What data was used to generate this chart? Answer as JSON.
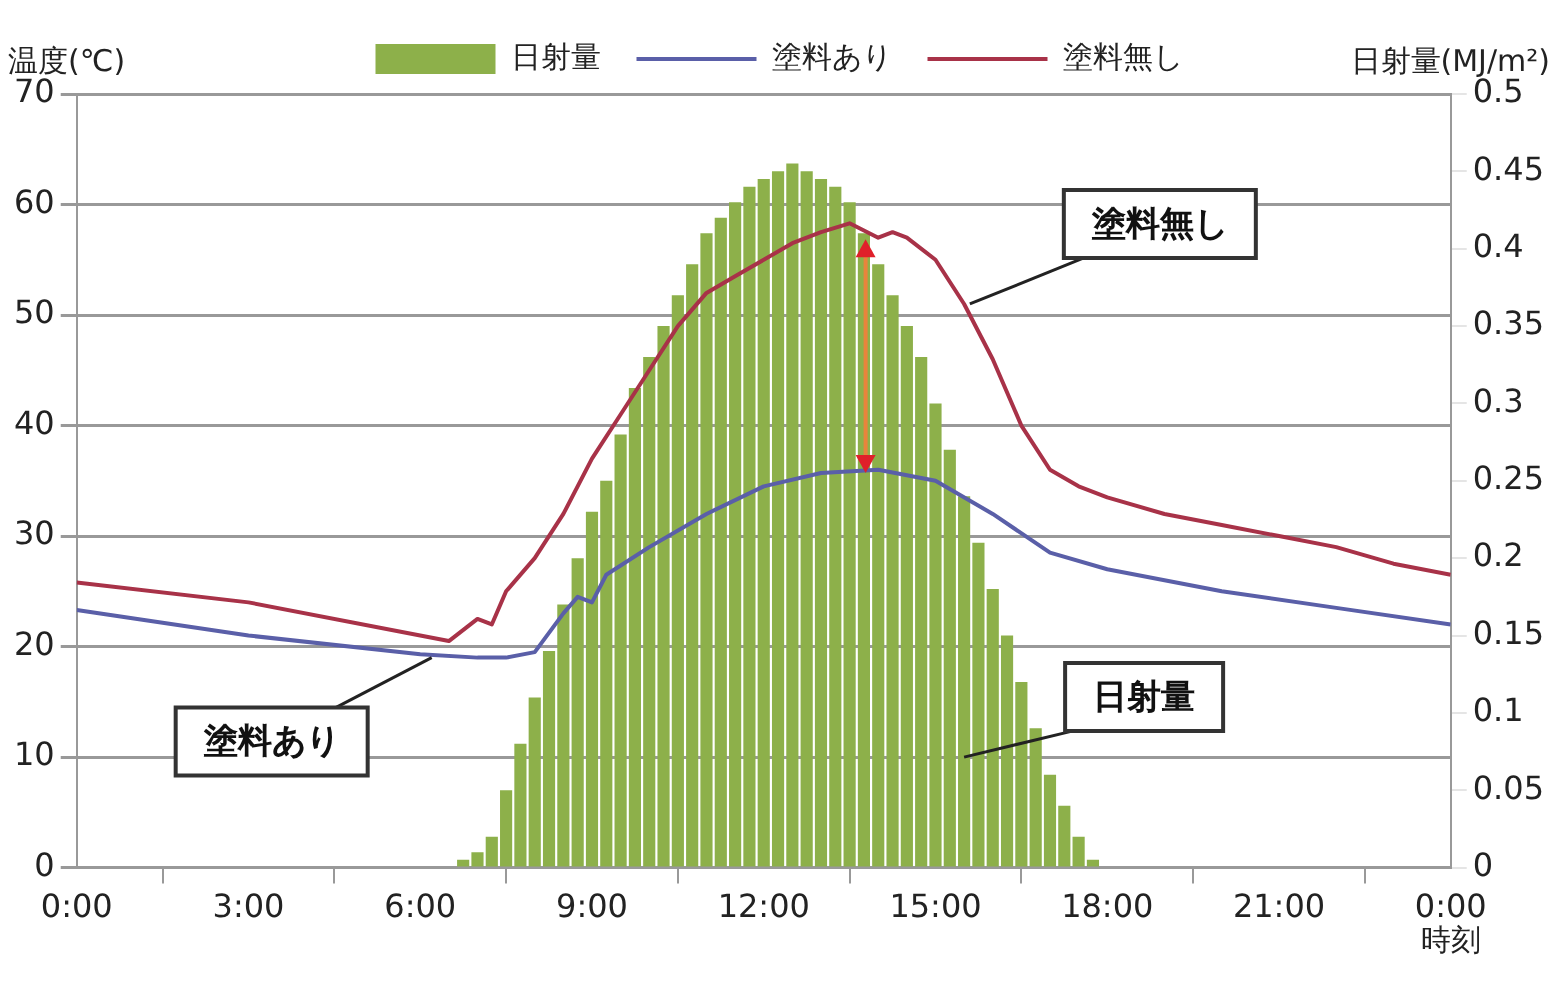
{
  "chart_data": {
    "type": "line",
    "xlabel": "時刻",
    "ylabel": "温度(℃)",
    "y2label": "日射量(MJ/m²)",
    "xlim": [
      0,
      24
    ],
    "xticks": [
      {
        "value": 0,
        "label": "0:00"
      },
      {
        "value": 3,
        "label": "3:00"
      },
      {
        "value": 6,
        "label": "6:00"
      },
      {
        "value": 9,
        "label": "9:00"
      },
      {
        "value": 12,
        "label": "12:00"
      },
      {
        "value": 15,
        "label": "15:00"
      },
      {
        "value": 18,
        "label": "18:00"
      },
      {
        "value": 21,
        "label": "21:00"
      },
      {
        "value": 24,
        "label": "0:00"
      }
    ],
    "ylim": [
      0,
      70
    ],
    "yticks": [
      0,
      10,
      20,
      30,
      40,
      50,
      60,
      70
    ],
    "y2lim": [
      0,
      0.5
    ],
    "y2ticks": [
      0,
      0.05,
      0.1,
      0.15,
      0.2,
      0.25,
      0.3,
      0.35,
      0.4,
      0.45,
      0.5
    ],
    "grid": "y",
    "legend": "top",
    "marker": "none",
    "line_style": "solid",
    "series": [
      {
        "name": "日射量",
        "type": "bar",
        "axis": "y2",
        "color": "#8db04a",
        "x": [
          6.75,
          7,
          7.25,
          7.5,
          7.75,
          8,
          8.25,
          8.5,
          8.75,
          9,
          9.25,
          9.5,
          9.75,
          10,
          10.25,
          10.5,
          10.75,
          11,
          11.25,
          11.5,
          11.75,
          12,
          12.25,
          12.5,
          12.75,
          13,
          13.25,
          13.5,
          13.75,
          14,
          14.25,
          14.5,
          14.75,
          15,
          15.25,
          15.5,
          15.75,
          16,
          16.25,
          16.5,
          16.75,
          17,
          17.25,
          17.5,
          17.75
        ],
        "values": [
          0.005,
          0.01,
          0.02,
          0.05,
          0.08,
          0.11,
          0.14,
          0.17,
          0.2,
          0.23,
          0.25,
          0.28,
          0.31,
          0.33,
          0.35,
          0.37,
          0.39,
          0.41,
          0.42,
          0.43,
          0.44,
          0.445,
          0.45,
          0.455,
          0.45,
          0.445,
          0.44,
          0.43,
          0.41,
          0.39,
          0.37,
          0.35,
          0.33,
          0.3,
          0.27,
          0.24,
          0.21,
          0.18,
          0.15,
          0.12,
          0.09,
          0.06,
          0.04,
          0.02,
          0.005
        ]
      },
      {
        "name": "塗料あり",
        "color": "#5a5fa8",
        "x": [
          0,
          3,
          6,
          7,
          7.5,
          8,
          8.5,
          8.75,
          9,
          9.25,
          10,
          11,
          12,
          13,
          14,
          15,
          16,
          17,
          18,
          20,
          22,
          24
        ],
        "values": [
          23.3,
          21,
          19.3,
          19,
          19,
          19.5,
          23,
          24.5,
          24,
          26.5,
          29,
          32,
          34.5,
          35.7,
          36,
          35,
          32,
          28.5,
          27,
          25,
          23.5,
          22
        ]
      },
      {
        "name": "塗料無し",
        "color": "#a83248",
        "x": [
          0,
          3,
          6,
          6.5,
          7,
          7.25,
          7.5,
          8,
          8.5,
          9,
          9.5,
          10,
          10.5,
          11,
          11.5,
          12,
          12.5,
          13,
          13.5,
          14,
          14.25,
          14.5,
          15,
          15.5,
          16,
          16.5,
          17,
          17.5,
          18,
          19,
          20,
          21,
          22,
          23,
          24
        ],
        "values": [
          25.8,
          24,
          21,
          20.5,
          22.5,
          22,
          25,
          28,
          32,
          37,
          41,
          45,
          49,
          52,
          53.5,
          55,
          56.5,
          57.5,
          58.3,
          57,
          57.5,
          57,
          55,
          51,
          46,
          40,
          36,
          34.5,
          33.5,
          32,
          31,
          30,
          29,
          27.5,
          26.5
        ]
      }
    ],
    "annotations": [
      {
        "text": "塗料無し",
        "x": 15.6,
        "y": 51
      },
      {
        "text": "日射量",
        "x": 15.5,
        "y": 10
      },
      {
        "text": "塗料あり",
        "x": 6.2,
        "y": 19
      }
    ]
  }
}
